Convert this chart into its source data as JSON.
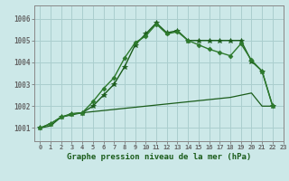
{
  "background_color": "#cce8e8",
  "grid_color": "#aacece",
  "dark_green": "#1a5c1a",
  "mid_green": "#2d7a2d",
  "title": "Graphe pression niveau de la mer (hPa)",
  "xlim": [
    -0.5,
    23
  ],
  "ylim": [
    1000.4,
    1006.6
  ],
  "yticks": [
    1001,
    1002,
    1003,
    1004,
    1005,
    1006
  ],
  "xticks": [
    0,
    1,
    2,
    3,
    4,
    5,
    6,
    7,
    8,
    9,
    10,
    11,
    12,
    13,
    14,
    15,
    16,
    17,
    18,
    19,
    20,
    21,
    22,
    23
  ],
  "series": [
    {
      "x": [
        0,
        1,
        2,
        3,
        4,
        5,
        6,
        7,
        8,
        9,
        10,
        11,
        12,
        13,
        14,
        15,
        16,
        17,
        18,
        19,
        20,
        21,
        22
      ],
      "y": [
        1001.0,
        1001.1,
        1001.5,
        1001.6,
        1001.7,
        1001.75,
        1001.8,
        1001.85,
        1001.9,
        1001.95,
        1002.0,
        1002.05,
        1002.1,
        1002.15,
        1002.2,
        1002.25,
        1002.3,
        1002.35,
        1002.4,
        1002.5,
        1002.6,
        1002.0,
        1002.0
      ],
      "color": "#1a5c1a",
      "linewidth": 0.9,
      "marker": null
    },
    {
      "x": [
        0,
        1,
        2,
        3,
        4,
        5,
        6,
        7,
        8,
        9,
        10,
        11,
        12,
        13,
        14,
        15,
        16,
        17,
        18,
        19,
        20,
        21,
        22
      ],
      "y": [
        1001.0,
        1001.2,
        1001.5,
        1001.65,
        1001.7,
        1002.0,
        1002.5,
        1003.0,
        1003.8,
        1004.8,
        1005.3,
        1005.8,
        1005.35,
        1005.45,
        1005.0,
        1005.0,
        1005.0,
        1005.0,
        1005.0,
        1005.0,
        1004.05,
        1003.6,
        1002.0
      ],
      "color": "#1a5c1a",
      "linewidth": 1.0,
      "marker": "*",
      "markersize": 4
    },
    {
      "x": [
        0,
        1,
        2,
        3,
        4,
        5,
        6,
        7,
        8,
        9,
        10,
        11,
        12,
        13,
        14,
        15,
        16,
        17,
        18,
        19,
        20,
        21,
        22
      ],
      "y": [
        1001.0,
        1001.2,
        1001.5,
        1001.65,
        1001.7,
        1002.2,
        1002.8,
        1003.3,
        1004.2,
        1004.9,
        1005.2,
        1005.75,
        1005.3,
        1005.4,
        1005.0,
        1004.8,
        1004.6,
        1004.45,
        1004.3,
        1004.85,
        1004.1,
        1003.6,
        1002.0
      ],
      "color": "#2d7a2d",
      "linewidth": 1.0,
      "marker": "D",
      "markersize": 2.5
    }
  ]
}
